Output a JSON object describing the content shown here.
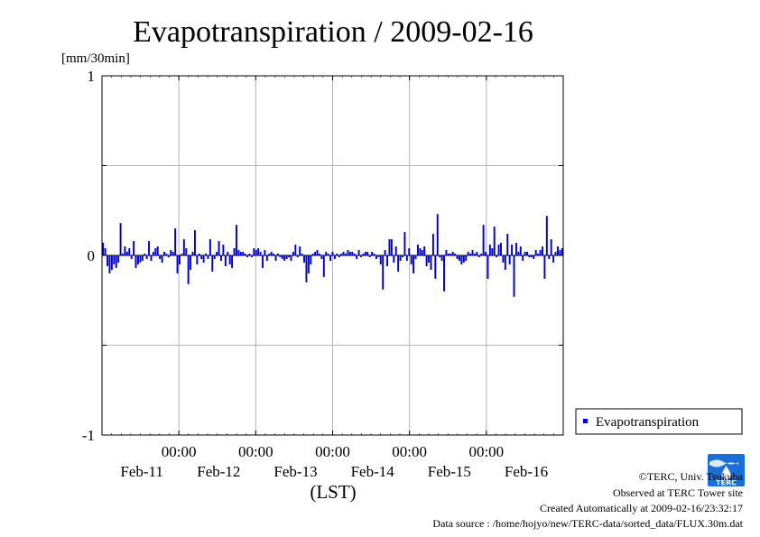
{
  "chart_data": {
    "type": "bar",
    "title": "Evapotranspiration / 2009-02-16",
    "unit_label": "[mm/30min]",
    "xlabel": "(LST)",
    "ylim": [
      -1,
      1
    ],
    "y_ticks": [
      {
        "value": 1,
        "label": "1"
      },
      {
        "value": 0,
        "label": "0"
      },
      {
        "value": -1,
        "label": "-1"
      }
    ],
    "y_minor_ticks": [
      0.5,
      -0.5
    ],
    "x_range_days": [
      0,
      6
    ],
    "x_day_ticks": [
      {
        "day": 1,
        "time_label": "00:00",
        "date_label": "Feb-11"
      },
      {
        "day": 2,
        "time_label": "00:00",
        "date_label": "Feb-12"
      },
      {
        "day": 3,
        "time_label": "00:00",
        "date_label": "Feb-13"
      },
      {
        "day": 4,
        "time_label": "00:00",
        "date_label": "Feb-14"
      },
      {
        "day": 5,
        "time_label": "00:00",
        "date_label": "Feb-15"
      },
      {
        "day": 6,
        "time_label": "",
        "date_label": "Feb-16"
      }
    ],
    "grid": true,
    "legend_position": "outside right, lower",
    "series": [
      {
        "name": "Evapotranspiration",
        "color": "#0000cc",
        "values": [
          0.07,
          0.04,
          -0.06,
          -0.1,
          -0.08,
          -0.05,
          -0.07,
          -0.04,
          0.18,
          0.01,
          0.05,
          0.02,
          0.04,
          -0.02,
          0.08,
          -0.07,
          -0.05,
          -0.04,
          -0.03,
          0.01,
          -0.02,
          0.08,
          -0.03,
          0.02,
          0.04,
          0.05,
          -0.02,
          -0.04,
          0.02,
          0.01,
          -0.01,
          0.03,
          0.02,
          0.15,
          -0.1,
          -0.05,
          0.01,
          0.09,
          0.04,
          -0.16,
          -0.08,
          0.02,
          0.14,
          -0.05,
          0.01,
          -0.02,
          -0.04,
          0.01,
          -0.02,
          0.09,
          -0.09,
          -0.02,
          0.02,
          0.08,
          -0.03,
          0.06,
          -0.06,
          0.02,
          -0.05,
          -0.07,
          0.04,
          0.17,
          0.03,
          0.02,
          0.02,
          0.01,
          -0.01,
          0.01,
          -0.01,
          0.04,
          0.03,
          0.04,
          0.02,
          -0.07,
          0.03,
          -0.03,
          0.01,
          0.02,
          0.01,
          -0.03,
          0.01,
          -0.01,
          -0.02,
          -0.03,
          -0.02,
          -0.01,
          -0.03,
          0.02,
          0.06,
          -0.01,
          0.05,
          0.01,
          -0.04,
          -0.15,
          -0.1,
          -0.05,
          0.01,
          0.02,
          0.03,
          0.01,
          -0.02,
          -0.12,
          0.02,
          0.01,
          -0.03,
          0.02,
          -0.02,
          0.01,
          -0.01,
          0.01,
          0.02,
          0.01,
          0.03,
          0.02,
          0.02,
          0.01,
          -0.02,
          0.03,
          -0.01,
          0.01,
          0.02,
          0.02,
          -0.01,
          0.02,
          0.01,
          -0.02,
          -0.01,
          -0.05,
          -0.19,
          0.03,
          -0.06,
          0.09,
          0.09,
          -0.04,
          0.05,
          -0.09,
          -0.03,
          -0.01,
          0.13,
          -0.03,
          0.04,
          -0.05,
          -0.1,
          -0.02,
          0.06,
          0.04,
          0.03,
          0.05,
          -0.06,
          -0.04,
          -0.08,
          0.12,
          -0.13,
          0.23,
          -0.01,
          -0.03,
          -0.2,
          0.03,
          0.01,
          0.01,
          0.02,
          0.01,
          -0.02,
          -0.03,
          -0.05,
          -0.04,
          -0.03,
          0.02,
          0.01,
          0.03,
          0.01,
          0.02,
          -0.01,
          0.01,
          0.17,
          0.02,
          -0.13,
          0.06,
          0.04,
          0.16,
          -0.01,
          0.06,
          0.07,
          -0.04,
          -0.08,
          0.12,
          -0.05,
          0.06,
          -0.23,
          0.07,
          0.02,
          0.05,
          -0.03,
          0.02,
          0.02,
          -0.01,
          -0.01,
          -0.02,
          0.03,
          0.01,
          0.03,
          0.05,
          -0.13,
          0.22,
          -0.02,
          0.09,
          -0.04,
          0.02,
          0.05,
          0.03,
          0.04
        ]
      }
    ]
  },
  "credits": {
    "copyright": "©TERC, Univ. Tsukuba",
    "site": "Observed at TERC Tower site",
    "created": "Created Automatically at 2009-02-16/23:32:17",
    "source": "Data source : /home/hojyo/new/TERC-data/sorted_data/FLUX.30m.dat"
  },
  "logo": {
    "name": "terc-logo-icon",
    "text": "TERC",
    "color": "#1a6fd6"
  }
}
